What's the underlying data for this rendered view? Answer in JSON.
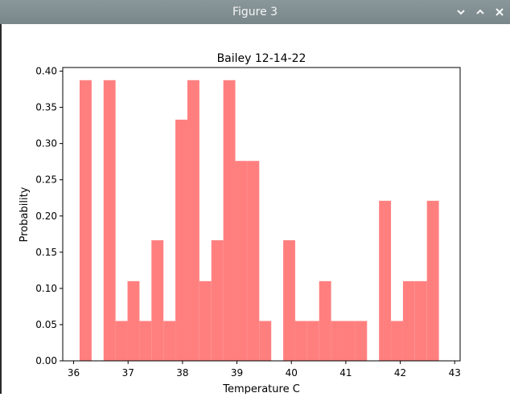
{
  "window": {
    "title": "Figure 3",
    "controls": [
      {
        "name": "minimize-icon",
        "glyph": "chevron-down"
      },
      {
        "name": "maximize-icon",
        "glyph": "chevron-up"
      },
      {
        "name": "close-icon",
        "glyph": "x"
      }
    ]
  },
  "colors": {
    "titlebar": "#7f8c8d",
    "bar": "#ff7f7f",
    "axis": "#000000"
  },
  "chart_data": {
    "type": "bar",
    "title": "Bailey 12-14-22",
    "xlabel": "Temperature C",
    "ylabel": "Probability",
    "xlim": [
      35.8,
      43.1
    ],
    "ylim": [
      0.0,
      0.405
    ],
    "xticks": [
      36,
      37,
      38,
      39,
      40,
      41,
      42,
      43
    ],
    "yticks": [
      "0.00",
      "0.05",
      "0.10",
      "0.15",
      "0.20",
      "0.25",
      "0.30",
      "0.35",
      "0.40"
    ],
    "bins": [
      {
        "x0": 36.11,
        "x1": 36.33,
        "value": 0.3875
      },
      {
        "x0": 36.33,
        "x1": 36.55,
        "value": 0.0
      },
      {
        "x0": 36.55,
        "x1": 36.77,
        "value": 0.3875
      },
      {
        "x0": 36.77,
        "x1": 36.99,
        "value": 0.055
      },
      {
        "x0": 36.99,
        "x1": 37.21,
        "value": 0.11
      },
      {
        "x0": 37.21,
        "x1": 37.43,
        "value": 0.055
      },
      {
        "x0": 37.43,
        "x1": 37.65,
        "value": 0.1665
      },
      {
        "x0": 37.65,
        "x1": 37.87,
        "value": 0.055
      },
      {
        "x0": 37.87,
        "x1": 38.09,
        "value": 0.333
      },
      {
        "x0": 38.09,
        "x1": 38.31,
        "value": 0.3875
      },
      {
        "x0": 38.31,
        "x1": 38.53,
        "value": 0.11
      },
      {
        "x0": 38.53,
        "x1": 38.75,
        "value": 0.1665
      },
      {
        "x0": 38.75,
        "x1": 38.97,
        "value": 0.3875
      },
      {
        "x0": 38.97,
        "x1": 39.19,
        "value": 0.276
      },
      {
        "x0": 39.19,
        "x1": 39.41,
        "value": 0.276
      },
      {
        "x0": 39.41,
        "x1": 39.63,
        "value": 0.055
      },
      {
        "x0": 39.63,
        "x1": 39.85,
        "value": 0.0
      },
      {
        "x0": 39.85,
        "x1": 40.07,
        "value": 0.1665
      },
      {
        "x0": 40.07,
        "x1": 40.29,
        "value": 0.055
      },
      {
        "x0": 40.29,
        "x1": 40.51,
        "value": 0.055
      },
      {
        "x0": 40.51,
        "x1": 40.73,
        "value": 0.11
      },
      {
        "x0": 40.73,
        "x1": 40.95,
        "value": 0.055
      },
      {
        "x0": 40.95,
        "x1": 41.17,
        "value": 0.055
      },
      {
        "x0": 41.17,
        "x1": 41.39,
        "value": 0.055
      },
      {
        "x0": 41.39,
        "x1": 41.61,
        "value": 0.0
      },
      {
        "x0": 41.61,
        "x1": 41.83,
        "value": 0.221
      },
      {
        "x0": 41.83,
        "x1": 42.05,
        "value": 0.055
      },
      {
        "x0": 42.05,
        "x1": 42.27,
        "value": 0.11
      },
      {
        "x0": 42.27,
        "x1": 42.49,
        "value": 0.11
      },
      {
        "x0": 42.49,
        "x1": 42.71,
        "value": 0.221
      }
    ]
  }
}
